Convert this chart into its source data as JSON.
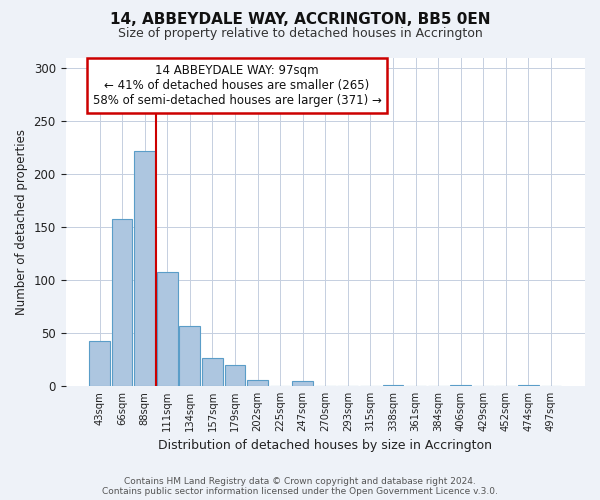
{
  "title": "14, ABBEYDALE WAY, ACCRINGTON, BB5 0EN",
  "subtitle": "Size of property relative to detached houses in Accrington",
  "xlabel": "Distribution of detached houses by size in Accrington",
  "ylabel": "Number of detached properties",
  "bar_labels": [
    "43sqm",
    "66sqm",
    "88sqm",
    "111sqm",
    "134sqm",
    "157sqm",
    "179sqm",
    "202sqm",
    "225sqm",
    "247sqm",
    "270sqm",
    "293sqm",
    "315sqm",
    "338sqm",
    "361sqm",
    "384sqm",
    "406sqm",
    "429sqm",
    "452sqm",
    "474sqm",
    "497sqm"
  ],
  "bar_values": [
    42,
    158,
    222,
    108,
    57,
    26,
    20,
    6,
    0,
    5,
    0,
    0,
    0,
    1,
    0,
    0,
    1,
    0,
    0,
    1,
    0
  ],
  "bar_color": "#adc6e0",
  "bar_edgecolor": "#5a9dc8",
  "ylim": [
    0,
    310
  ],
  "yticks": [
    0,
    50,
    100,
    150,
    200,
    250,
    300
  ],
  "vline_color": "#cc0000",
  "annotation_title": "14 ABBEYDALE WAY: 97sqm",
  "annotation_line1": "← 41% of detached houses are smaller (265)",
  "annotation_line2": "58% of semi-detached houses are larger (371) →",
  "annotation_box_edgecolor": "#cc0000",
  "footer_line1": "Contains HM Land Registry data © Crown copyright and database right 2024.",
  "footer_line2": "Contains public sector information licensed under the Open Government Licence v.3.0.",
  "background_color": "#eef2f8",
  "plot_background": "#ffffff"
}
